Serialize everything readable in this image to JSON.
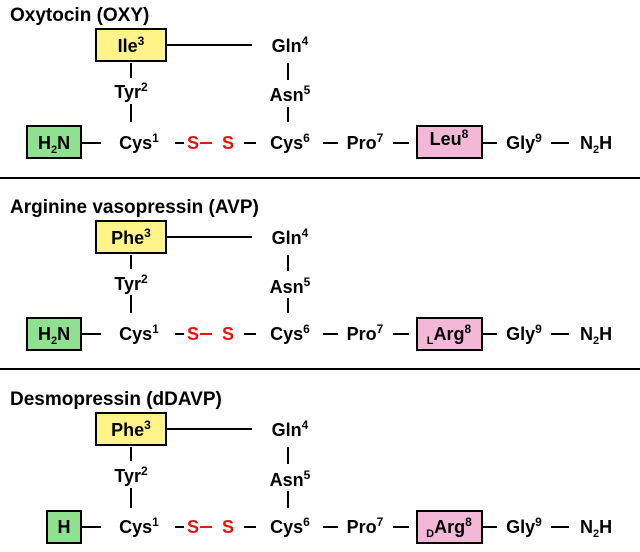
{
  "colors": {
    "terminal_fill": "#8fe08f",
    "residue3_fill": "#fff38a",
    "residue8_fill": "#f3b8d8",
    "disulfide_text": "#ee1111",
    "line": "#000000"
  },
  "panels": [
    {
      "title": "Oxytocin (OXY)",
      "terminal": {
        "label": "H",
        "sub": "2",
        "suffix": "N"
      },
      "res3": {
        "label": "Ile",
        "sup": "3"
      },
      "res2": {
        "label": "Tyr",
        "sup": "2"
      },
      "res1": {
        "label": "Cys",
        "sup": "1"
      },
      "res4": {
        "label": "Gln",
        "sup": "4"
      },
      "res5": {
        "label": "Asn",
        "sup": "5"
      },
      "res6": {
        "label": "Cys",
        "sup": "6"
      },
      "s_left": "S",
      "s_right": "S",
      "res7": {
        "label": "Pro",
        "sup": "7"
      },
      "res8": {
        "prefix": "",
        "label": "Leu",
        "sup": "8"
      },
      "res9": {
        "label": "Gly",
        "sup": "9"
      },
      "cterm": {
        "prefix": "N",
        "sub": "2",
        "suffix": "H"
      }
    },
    {
      "title": "Arginine vasopressin (AVP)",
      "terminal": {
        "label": "H",
        "sub": "2",
        "suffix": "N"
      },
      "res3": {
        "label": "Phe",
        "sup": "3"
      },
      "res2": {
        "label": "Tyr",
        "sup": "2"
      },
      "res1": {
        "label": "Cys",
        "sup": "1"
      },
      "res4": {
        "label": "Gln",
        "sup": "4"
      },
      "res5": {
        "label": "Asn",
        "sup": "5"
      },
      "res6": {
        "label": "Cys",
        "sup": "6"
      },
      "s_left": "S",
      "s_right": "S",
      "res7": {
        "label": "Pro",
        "sup": "7"
      },
      "res8": {
        "prefix": "L",
        "label": "Arg",
        "sup": "8"
      },
      "res9": {
        "label": "Gly",
        "sup": "9"
      },
      "cterm": {
        "prefix": "N",
        "sub": "2",
        "suffix": "H"
      }
    },
    {
      "title": "Desmopressin (dDAVP)",
      "terminal": {
        "label": "H",
        "sub": "",
        "suffix": ""
      },
      "res3": {
        "label": "Phe",
        "sup": "3"
      },
      "res2": {
        "label": "Tyr",
        "sup": "2"
      },
      "res1": {
        "label": "Cys",
        "sup": "1"
      },
      "res4": {
        "label": "Gln",
        "sup": "4"
      },
      "res5": {
        "label": "Asn",
        "sup": "5"
      },
      "res6": {
        "label": "Cys",
        "sup": "6"
      },
      "s_left": "S",
      "s_right": "S",
      "res7": {
        "label": "Pro",
        "sup": "7"
      },
      "res8": {
        "prefix": "D",
        "label": "Arg",
        "sup": "8"
      },
      "res9": {
        "label": "Gly",
        "sup": "9"
      },
      "cterm": {
        "prefix": "N",
        "sub": "2",
        "suffix": "H"
      }
    }
  ]
}
